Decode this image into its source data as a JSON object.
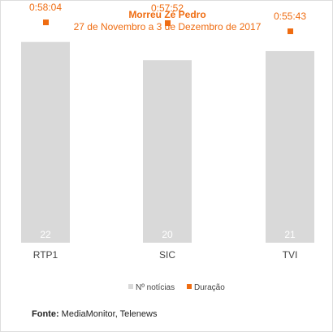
{
  "chart_data": {
    "type": "bar",
    "title": "Morreu Zé Pedro",
    "subtitle": "27 de Novembro a 3 de Dezembro de 2017",
    "categories": [
      "RTP1",
      "SIC",
      "TVI"
    ],
    "series": [
      {
        "name": "Nº notícias",
        "values": [
          22,
          20,
          21
        ],
        "color": "#d9d9d9",
        "kind": "bar"
      },
      {
        "name": "Duração",
        "values": [
          "0:58:04",
          "0:57:52",
          "0:55:43"
        ],
        "seconds": [
          3484,
          3472,
          3343
        ],
        "color": "#ef6c11",
        "kind": "marker"
      }
    ],
    "ylim_count": [
      0,
      25
    ],
    "ylim_duration_seconds": [
      0,
      3600
    ],
    "legend_position": "bottom",
    "grid": false
  },
  "source": {
    "label": "Fonte:",
    "text": "MediaMonitor, Telenews"
  }
}
